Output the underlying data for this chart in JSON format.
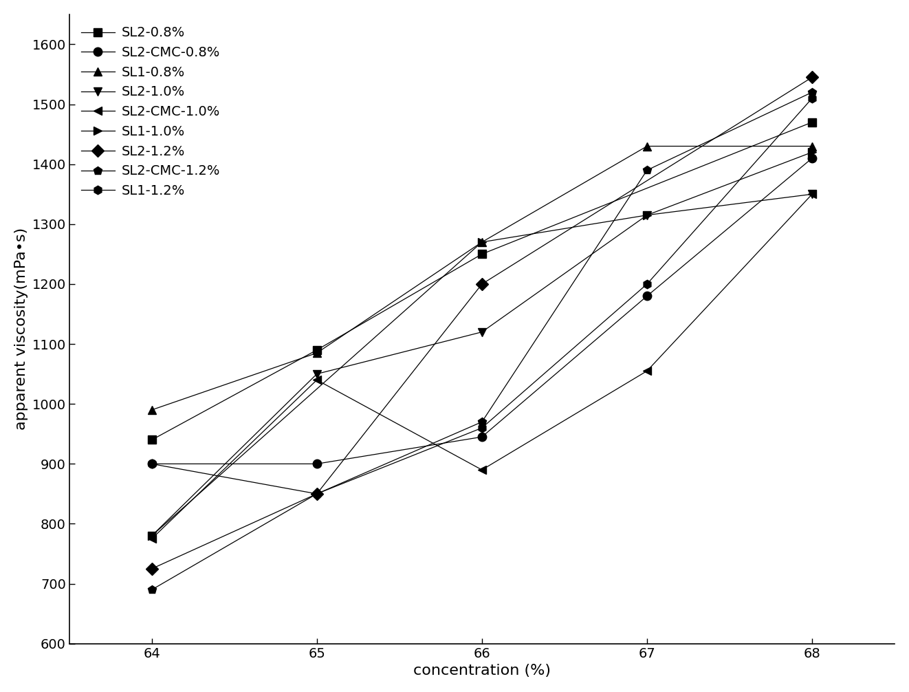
{
  "x": [
    64,
    65,
    66,
    67,
    68
  ],
  "series": [
    {
      "label": "SL2-0.8%",
      "marker": "s",
      "y": [
        940,
        1090,
        1250,
        null,
        1470
      ]
    },
    {
      "label": "SL2-CMC-0.8%",
      "marker": "o",
      "y": [
        900,
        900,
        945,
        1180,
        1410
      ]
    },
    {
      "label": "SL1-0.8%",
      "marker": "^",
      "y": [
        990,
        1085,
        1270,
        1430,
        1430
      ]
    },
    {
      "label": "SL2-1.0%",
      "marker": "v",
      "y": [
        780,
        1050,
        1120,
        1315,
        1350
      ]
    },
    {
      "label": "SL2-CMC-1.0%",
      "marker": "<",
      "y": [
        775,
        1040,
        890,
        1055,
        1350
      ]
    },
    {
      "label": "SL1-1.0%",
      "marker": ">",
      "y": [
        780,
        null,
        1270,
        1315,
        1420
      ]
    },
    {
      "label": "SL2-1.2%",
      "marker": "D",
      "y": [
        725,
        850,
        1200,
        null,
        1545
      ]
    },
    {
      "label": "SL2-CMC-1.2%",
      "marker": "p",
      "y": [
        690,
        850,
        970,
        1390,
        1520
      ]
    },
    {
      "label": "SL1-1.2%",
      "marker": "h",
      "y": [
        900,
        850,
        960,
        1200,
        1510
      ]
    }
  ],
  "ylabel": "apparent viscosity(mPa•s)",
  "xlabel": "concentration (%)",
  "ylim": [
    600,
    1650
  ],
  "xlim": [
    63.5,
    68.5
  ],
  "yticks": [
    600,
    700,
    800,
    900,
    1000,
    1100,
    1200,
    1300,
    1400,
    1500,
    1600
  ],
  "xticks": [
    64,
    65,
    66,
    67,
    68
  ],
  "linewidth": 0.9,
  "markersize": 9,
  "legend_fontsize": 14,
  "axis_label_fontsize": 16,
  "tick_fontsize": 14
}
